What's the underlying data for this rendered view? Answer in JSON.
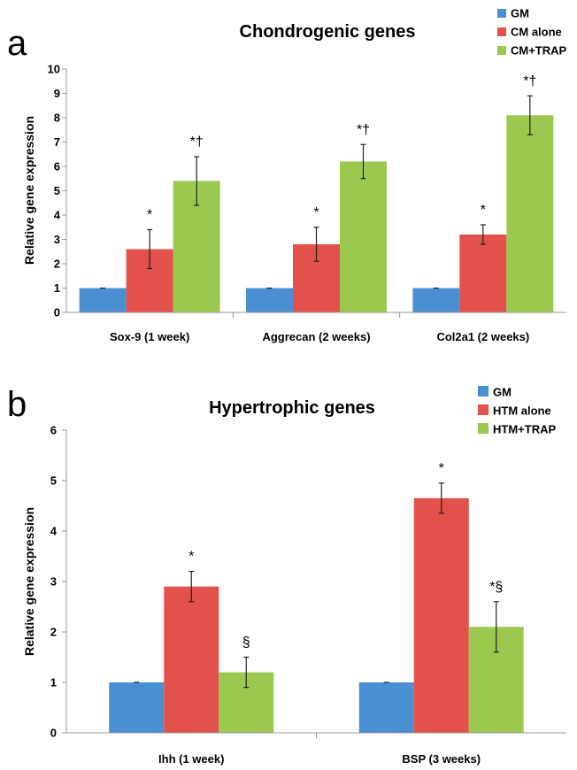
{
  "chart_data": [
    {
      "panel_label": "a",
      "type": "bar",
      "title": "Chondrogenic genes",
      "xlabel": "",
      "ylabel": "Relative gene expression",
      "ylim": [
        0,
        10
      ],
      "yticks": [
        0,
        1,
        2,
        3,
        4,
        5,
        6,
        7,
        8,
        9,
        10
      ],
      "grid": false,
      "legend_position": "top-right",
      "categories": [
        "Sox-9 (1 week)",
        "Aggrecan (2 weeks)",
        "Col2a1 (2 weeks)"
      ],
      "series": [
        {
          "name": "GM",
          "color": "#4a8fd1",
          "values": [
            1,
            1,
            1
          ],
          "errors": [
            0,
            0,
            0
          ],
          "annotations": [
            "",
            "",
            ""
          ]
        },
        {
          "name": "CM alone",
          "color": "#e2514b",
          "values": [
            2.6,
            2.8,
            3.2
          ],
          "errors": [
            0.8,
            0.7,
            0.4
          ],
          "annotations": [
            "*",
            "*",
            "*"
          ]
        },
        {
          "name": "CM+TRAP",
          "color": "#9bc94f",
          "values": [
            5.4,
            6.2,
            8.1
          ],
          "errors": [
            1.0,
            0.7,
            0.8
          ],
          "annotations": [
            "*†",
            "*†",
            "*†"
          ]
        }
      ]
    },
    {
      "panel_label": "b",
      "type": "bar",
      "title": "Hypertrophic genes",
      "xlabel": "",
      "ylabel": "Relative gene expression",
      "ylim": [
        0,
        6
      ],
      "yticks": [
        0,
        1,
        2,
        3,
        4,
        5,
        6
      ],
      "grid": false,
      "legend_position": "top-right",
      "categories": [
        "Ihh (1 week)",
        "BSP (3 weeks)"
      ],
      "series": [
        {
          "name": "GM",
          "color": "#4a8fd1",
          "values": [
            1,
            1
          ],
          "errors": [
            0,
            0
          ],
          "annotations": [
            "",
            ""
          ]
        },
        {
          "name": "HTM alone",
          "color": "#e2514b",
          "values": [
            2.9,
            4.65
          ],
          "errors": [
            0.3,
            0.3
          ],
          "annotations": [
            "*",
            "*"
          ]
        },
        {
          "name": "HTM+TRAP",
          "color": "#9bc94f",
          "values": [
            1.2,
            2.1
          ],
          "errors": [
            0.3,
            0.5
          ],
          "annotations": [
            "§",
            "*§"
          ]
        }
      ]
    }
  ]
}
